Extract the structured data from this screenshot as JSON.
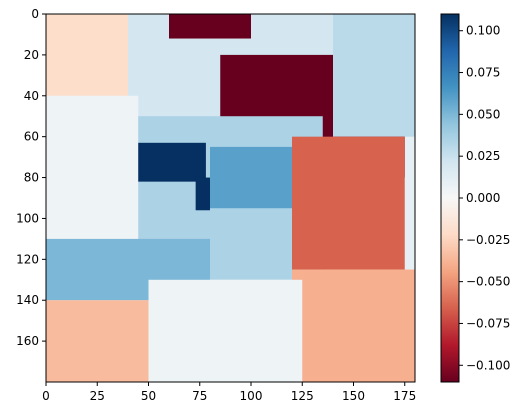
{
  "chart_data": {
    "type": "heatmap",
    "title": "",
    "xlabel": "",
    "ylabel": "",
    "xlim": [
      0,
      180
    ],
    "ylim": [
      180,
      0
    ],
    "x_ticks": [
      0,
      25,
      50,
      75,
      100,
      125,
      150,
      175
    ],
    "y_ticks": [
      0,
      20,
      40,
      60,
      80,
      100,
      120,
      140,
      160
    ],
    "colormap": "RdBu",
    "colorbar": {
      "vmin": -0.11,
      "vmax": 0.11,
      "ticks": [
        0.1,
        0.075,
        0.05,
        0.025,
        0.0,
        -0.025,
        -0.05,
        -0.075,
        -0.1
      ],
      "tick_labels": [
        "0.100",
        "0.075",
        "0.050",
        "0.025",
        "0.000",
        "−0.025",
        "−0.050",
        "−0.075",
        "−0.100"
      ]
    },
    "regions": [
      {
        "name": "base-top-left",
        "x": [
          0,
          60
        ],
        "y": [
          0,
          60
        ],
        "value": -0.02
      },
      {
        "name": "base-mid",
        "x": [
          40,
          140
        ],
        "y": [
          0,
          60
        ],
        "value": 0.02
      },
      {
        "name": "top-dark-red",
        "x": [
          60,
          100
        ],
        "y": [
          0,
          12
        ],
        "value": -0.11
      },
      {
        "name": "upper-right-dark-red",
        "x": [
          85,
          175
        ],
        "y": [
          20,
          80
        ],
        "value": -0.11
      },
      {
        "name": "right-pale",
        "x": [
          140,
          180
        ],
        "y": [
          0,
          60
        ],
        "value": 0.03
      },
      {
        "name": "left-mid-pale",
        "x": [
          0,
          45
        ],
        "y": [
          40,
          120
        ],
        "value": 0.005
      },
      {
        "name": "center-blue",
        "x": [
          45,
          135
        ],
        "y": [
          50,
          130
        ],
        "value": 0.035
      },
      {
        "name": "dark-blue-block",
        "x": [
          45,
          78
        ],
        "y": [
          63,
          82
        ],
        "value": 0.11
      },
      {
        "name": "mid-blue-block",
        "x": [
          80,
          120
        ],
        "y": [
          65,
          95
        ],
        "value": 0.06
      },
      {
        "name": "dark-blue-small",
        "x": [
          73,
          80
        ],
        "y": [
          80,
          96
        ],
        "value": 0.11
      },
      {
        "name": "right-orange-block",
        "x": [
          120,
          175
        ],
        "y": [
          60,
          125
        ],
        "value": -0.065
      },
      {
        "name": "right-bottom-orange",
        "x": [
          120,
          180
        ],
        "y": [
          125,
          180
        ],
        "value": -0.04
      },
      {
        "name": "lower-left-blue-strip",
        "x": [
          0,
          80
        ],
        "y": [
          110,
          140
        ],
        "value": 0.05
      },
      {
        "name": "bottom-left-peach",
        "x": [
          0,
          60
        ],
        "y": [
          140,
          180
        ],
        "value": -0.035
      },
      {
        "name": "bottom-center-pale",
        "x": [
          50,
          125
        ],
        "y": [
          130,
          180
        ],
        "value": 0.005
      }
    ]
  }
}
